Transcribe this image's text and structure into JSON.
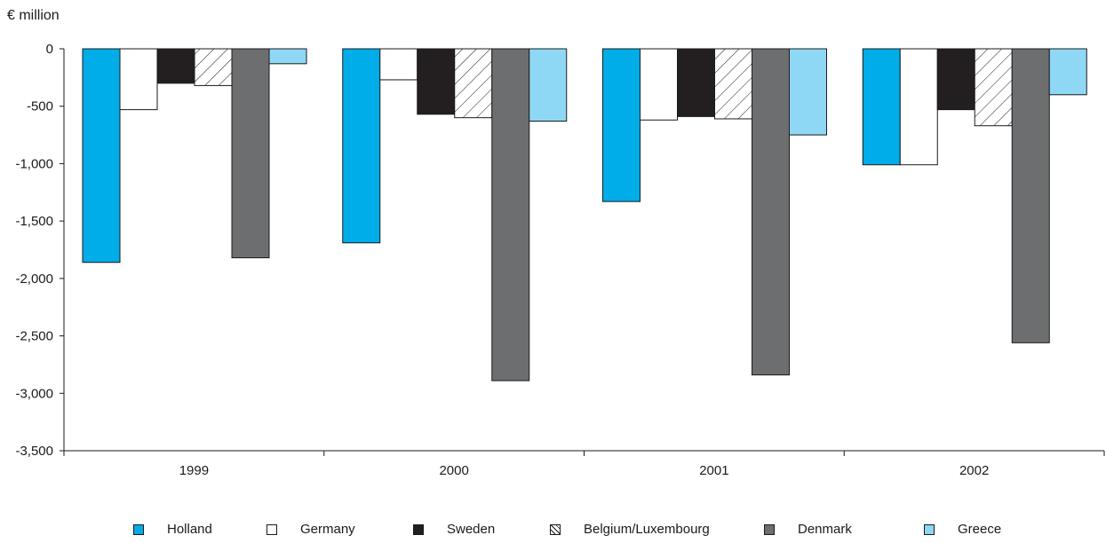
{
  "chart_data": {
    "type": "bar",
    "unit_label": "€ million",
    "categories": [
      "1999",
      "2000",
      "2001",
      "2002"
    ],
    "ylim": [
      -3500,
      0
    ],
    "yticks": [
      0,
      -500,
      -1000,
      -1500,
      -2000,
      -2500,
      -3000,
      -3500
    ],
    "ytick_labels": [
      "0",
      "-500",
      "-1,000",
      "-1,500",
      "-2,000",
      "-2,500",
      "-3,000",
      "-3,500"
    ],
    "grid": false,
    "legend_position": "bottom",
    "series": [
      {
        "name": "Holland",
        "color": "#00ade8",
        "pattern": "solid",
        "values": [
          -1860,
          -1690,
          -1330,
          -1010
        ]
      },
      {
        "name": "Germany",
        "color": "#ffffff",
        "pattern": "solid",
        "values": [
          -530,
          -270,
          -620,
          -1010
        ]
      },
      {
        "name": "Sweden",
        "color": "#231f20",
        "pattern": "solid",
        "values": [
          -300,
          -570,
          -590,
          -530
        ]
      },
      {
        "name": "Belgium/Luxembourg",
        "color": "#ffffff",
        "pattern": "diagonal-hatch",
        "values": [
          -320,
          -600,
          -610,
          -670
        ]
      },
      {
        "name": "Denmark",
        "color": "#6d6e70",
        "pattern": "solid",
        "values": [
          -1820,
          -2890,
          -2840,
          -2560
        ]
      },
      {
        "name": "Greece",
        "color": "#8fd8f5",
        "pattern": "solid",
        "values": [
          -130,
          -630,
          -750,
          -400
        ]
      }
    ]
  }
}
